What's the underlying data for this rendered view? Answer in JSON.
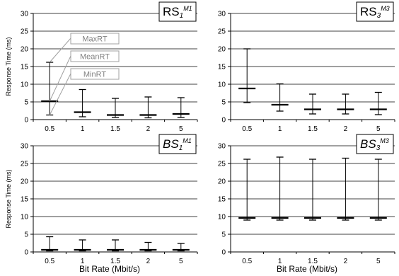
{
  "figure": {
    "xlabel": "Bit Rate (Mbit/s)",
    "ylabel": "Response Time (ms)"
  },
  "chart_data": [
    {
      "type": "box",
      "title": "RS",
      "title_sub": "1",
      "title_sup": "M1",
      "categories": [
        "0.5",
        "1",
        "1.5",
        "2",
        "5"
      ],
      "ylim": [
        0,
        30
      ],
      "yticks": [
        "0",
        "5",
        "10",
        "15",
        "20",
        "25",
        "30"
      ],
      "grid": true,
      "series": [
        {
          "min": 1.3,
          "mean": 5.2,
          "max": 16.2
        },
        {
          "min": 0.8,
          "mean": 2.1,
          "max": 8.5
        },
        {
          "min": 0.6,
          "mean": 1.3,
          "max": 6.0
        },
        {
          "min": 0.5,
          "mean": 1.3,
          "max": 6.4
        },
        {
          "min": 0.6,
          "mean": 1.6,
          "max": 6.2
        }
      ],
      "annotations": {
        "max": "MaxRT",
        "mean": "MeanRT",
        "min": "MinRT"
      }
    },
    {
      "type": "box",
      "title": "RS",
      "title_sub": "3",
      "title_sup": "M3",
      "categories": [
        "0.5",
        "1",
        "1.5",
        "2",
        "5"
      ],
      "ylim": [
        0,
        30
      ],
      "yticks": [
        "0",
        "5",
        "10",
        "15",
        "20",
        "25",
        "30"
      ],
      "grid": true,
      "series": [
        {
          "min": 4.8,
          "mean": 8.8,
          "max": 20.0
        },
        {
          "min": 2.4,
          "mean": 4.2,
          "max": 10.1
        },
        {
          "min": 1.6,
          "mean": 2.9,
          "max": 7.2
        },
        {
          "min": 1.6,
          "mean": 2.9,
          "max": 7.2
        },
        {
          "min": 1.4,
          "mean": 2.9,
          "max": 7.7
        }
      ]
    },
    {
      "type": "box",
      "title": "BS",
      "title_sub": "1",
      "title_sup": "M1",
      "categories": [
        "0.5",
        "1",
        "1.5",
        "2",
        "5"
      ],
      "ylim": [
        0,
        30
      ],
      "yticks": [
        "0",
        "5",
        "10",
        "15",
        "20",
        "25",
        "30"
      ],
      "grid": true,
      "series": [
        {
          "min": 0.3,
          "mean": 0.6,
          "max": 4.3
        },
        {
          "min": 0.3,
          "mean": 0.6,
          "max": 3.4
        },
        {
          "min": 0.3,
          "mean": 0.6,
          "max": 3.4
        },
        {
          "min": 0.3,
          "mean": 0.6,
          "max": 2.7
        },
        {
          "min": 0.3,
          "mean": 0.6,
          "max": 2.4
        }
      ]
    },
    {
      "type": "box",
      "title": "BS",
      "title_sub": "3",
      "title_sup": "M3",
      "categories": [
        "0.5",
        "1",
        "1.5",
        "2",
        "5"
      ],
      "ylim": [
        0,
        30
      ],
      "yticks": [
        "0",
        "5",
        "10",
        "15",
        "20",
        "25",
        "30"
      ],
      "grid": true,
      "series": [
        {
          "min": 9.0,
          "mean": 9.6,
          "max": 26.2
        },
        {
          "min": 9.0,
          "mean": 9.6,
          "max": 26.8
        },
        {
          "min": 9.0,
          "mean": 9.6,
          "max": 26.2
        },
        {
          "min": 9.0,
          "mean": 9.6,
          "max": 26.5
        },
        {
          "min": 9.0,
          "mean": 9.6,
          "max": 26.2
        }
      ]
    }
  ]
}
